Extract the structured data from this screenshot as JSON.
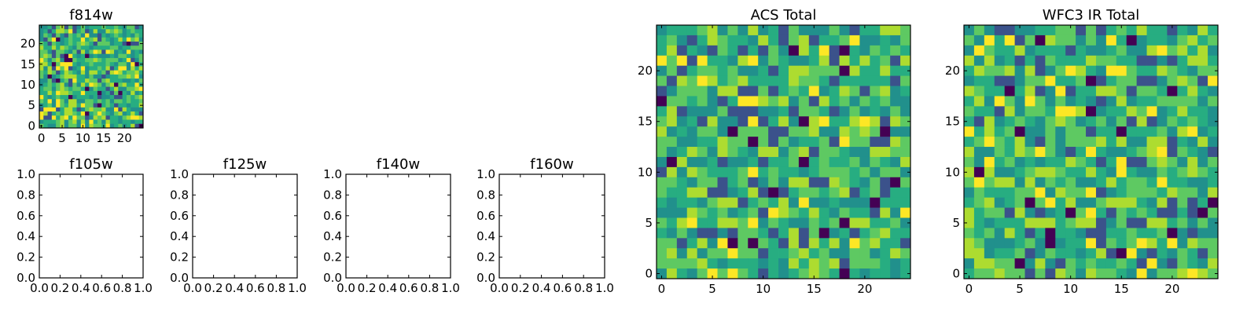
{
  "chart_data": [
    {
      "type": "heatmap",
      "title": "f814w",
      "xticks": [
        "0",
        "5",
        "10",
        "15",
        "20"
      ],
      "yticks": [
        "0",
        "5",
        "10",
        "15",
        "20"
      ],
      "xlim": [
        -0.5,
        24.5
      ],
      "ylim": [
        -0.5,
        24.5
      ],
      "grid_size": 25,
      "colormap": "viridis",
      "seed": 11
    },
    {
      "type": "empty",
      "title": "f105w",
      "xticks": [
        "0.0",
        "0.2",
        "0.4",
        "0.6",
        "0.8",
        "1.0"
      ],
      "yticks": [
        "0.0",
        "0.2",
        "0.4",
        "0.6",
        "0.8",
        "1.0"
      ],
      "xlim": [
        0,
        1
      ],
      "ylim": [
        0,
        1
      ]
    },
    {
      "type": "empty",
      "title": "f125w",
      "xticks": [
        "0.0",
        "0.2",
        "0.4",
        "0.6",
        "0.8",
        "1.0"
      ],
      "yticks": [
        "0.0",
        "0.2",
        "0.4",
        "0.6",
        "0.8",
        "1.0"
      ],
      "xlim": [
        0,
        1
      ],
      "ylim": [
        0,
        1
      ]
    },
    {
      "type": "empty",
      "title": "f140w",
      "xticks": [
        "0.0",
        "0.2",
        "0.4",
        "0.6",
        "0.8",
        "1.0"
      ],
      "yticks": [
        "0.0",
        "0.2",
        "0.4",
        "0.6",
        "0.8",
        "1.0"
      ],
      "xlim": [
        0,
        1
      ],
      "ylim": [
        0,
        1
      ]
    },
    {
      "type": "empty",
      "title": "f160w",
      "xticks": [
        "0.0",
        "0.2",
        "0.4",
        "0.6",
        "0.8",
        "1.0"
      ],
      "yticks": [
        "0.0",
        "0.2",
        "0.4",
        "0.6",
        "0.8",
        "1.0"
      ],
      "xlim": [
        0,
        1
      ],
      "ylim": [
        0,
        1
      ]
    },
    {
      "type": "heatmap",
      "title": "ACS Total",
      "xticks": [
        "0",
        "5",
        "10",
        "15",
        "20"
      ],
      "yticks": [
        "0",
        "5",
        "10",
        "15",
        "20"
      ],
      "xlim": [
        -0.5,
        24.5
      ],
      "ylim": [
        -0.5,
        24.5
      ],
      "grid_size": 25,
      "colormap": "viridis",
      "seed": 23
    },
    {
      "type": "heatmap",
      "title": "WFC3 IR Total",
      "xticks": [
        "0",
        "5",
        "10",
        "15",
        "20"
      ],
      "yticks": [
        "0",
        "5",
        "10",
        "15",
        "20"
      ],
      "xlim": [
        -0.5,
        24.5
      ],
      "ylim": [
        -0.5,
        24.5
      ],
      "grid_size": 25,
      "colormap": "viridis",
      "seed": 37
    }
  ]
}
